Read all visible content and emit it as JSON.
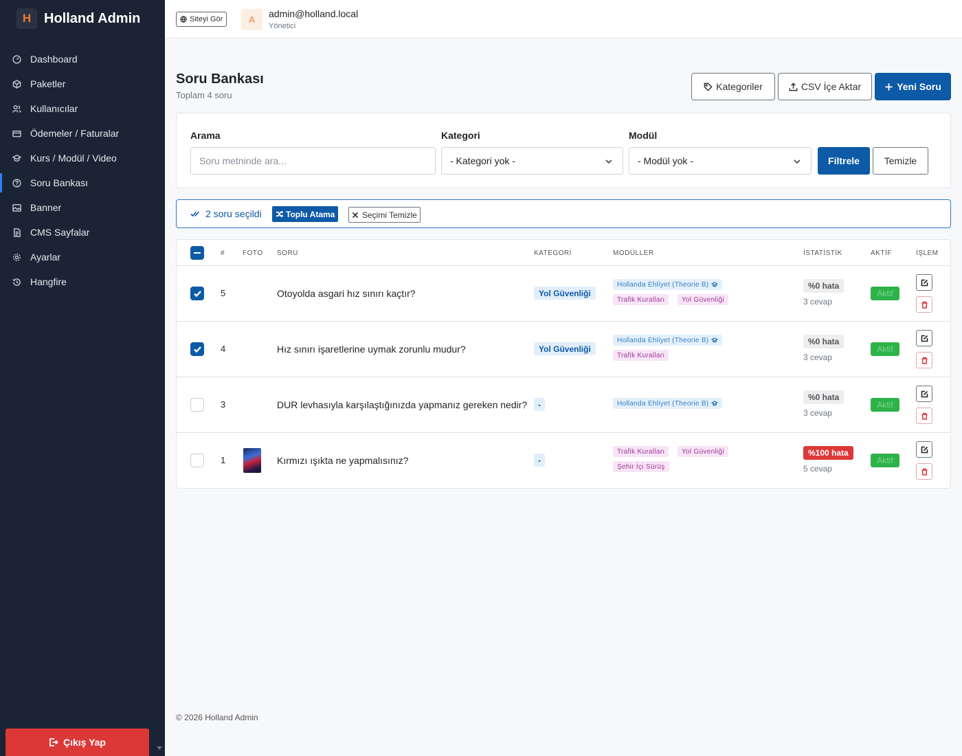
{
  "brand": {
    "logo_letter": "H",
    "name": "Holland Admin"
  },
  "sidebar": {
    "items": [
      {
        "label": "Dashboard",
        "icon": "dashboard-icon",
        "active": false
      },
      {
        "label": "Paketler",
        "icon": "box-icon",
        "active": false
      },
      {
        "label": "Kullanıcılar",
        "icon": "users-icon",
        "active": false
      },
      {
        "label": "Ödemeler / Faturalar",
        "icon": "card-icon",
        "active": false
      },
      {
        "label": "Kurs / Modül / Video",
        "icon": "graduation-cap-icon",
        "active": false
      },
      {
        "label": "Soru Bankası",
        "icon": "question-circle-icon",
        "active": true
      },
      {
        "label": "Banner",
        "icon": "image-icon",
        "active": false
      },
      {
        "label": "CMS Sayfalar",
        "icon": "document-icon",
        "active": false
      },
      {
        "label": "Ayarlar",
        "icon": "gear-icon",
        "active": false
      },
      {
        "label": "Hangfire",
        "icon": "history-icon",
        "active": false
      }
    ],
    "logout_label": "Çıkış Yap"
  },
  "topbar": {
    "site_button": "Siteyi Gör",
    "avatar_letter": "A",
    "user_email": "admin@holland.local",
    "user_role": "Yönetici"
  },
  "page": {
    "title": "Soru Bankası",
    "subtitle": "Toplam 4 soru",
    "buttons": {
      "categories": "Kategoriler",
      "csv_import": "CSV İçe Aktar",
      "new_question": "Yeni Soru"
    }
  },
  "filters": {
    "search_label": "Arama",
    "search_placeholder": "Soru metninde ara...",
    "search_value": "",
    "category_label": "Kategori",
    "category_value": "- Kategori yok -",
    "module_label": "Modül",
    "module_value": "- Modül yok -",
    "filter_button": "Filtrele",
    "clear_button": "Temizle"
  },
  "selection": {
    "count_text": "2 soru seçildi",
    "bulk_button": "Toplu Atama",
    "clear_button": "Seçimi Temizle"
  },
  "table": {
    "headers": {
      "num": "#",
      "photo": "FOTO",
      "question": "SORU",
      "category": "KATEGORİ",
      "modules": "MODÜLLER",
      "stats": "İSTATİSTİK",
      "active": "AKTİF",
      "actions": "İŞLEM"
    },
    "rows": [
      {
        "checked": true,
        "id": "5",
        "has_photo": false,
        "question": "Otoyolda asgari hız sınırı kaçtır?",
        "category": "Yol Güvenliği",
        "modules": [
          {
            "label": "Hollanda Ehliyet (Theorie B)",
            "color": "blue",
            "icon": true
          },
          {
            "label": "Trafik Kuralları",
            "color": "pink"
          },
          {
            "label": "Yol Güvenliği",
            "color": "pink"
          }
        ],
        "error_rate": "%0 hata",
        "error_color": "grey",
        "answers": "3 cevap",
        "active": "Aktif"
      },
      {
        "checked": true,
        "id": "4",
        "has_photo": false,
        "question": "Hız sınırı işaretlerine uymak zorunlu mudur?",
        "category": "Yol Güvenliği",
        "modules": [
          {
            "label": "Hollanda Ehliyet (Theorie B)",
            "color": "blue",
            "icon": true
          },
          {
            "label": "Trafik Kuralları",
            "color": "pink"
          }
        ],
        "error_rate": "%0 hata",
        "error_color": "grey",
        "answers": "3 cevap",
        "active": "Aktif"
      },
      {
        "checked": false,
        "id": "3",
        "has_photo": false,
        "question": "DUR levhasıyla karşılaştığınızda yapmanız gereken nedir?",
        "category": "-",
        "modules": [
          {
            "label": "Hollanda Ehliyet (Theorie B)",
            "color": "blue",
            "icon": true
          }
        ],
        "error_rate": "%0 hata",
        "error_color": "grey",
        "answers": "3 cevap",
        "active": "Aktif"
      },
      {
        "checked": false,
        "id": "1",
        "has_photo": true,
        "question": "Kırmızı ışıkta ne yapmalısınız?",
        "category": "-",
        "modules": [
          {
            "label": "Trafik Kuralları",
            "color": "pink"
          },
          {
            "label": "Yol Güvenliği",
            "color": "pink"
          },
          {
            "label": "Şehir İçi Sürüş",
            "color": "pink"
          }
        ],
        "error_rate": "%100 hata",
        "error_color": "red",
        "answers": "5 cevap",
        "active": "Aktif"
      }
    ]
  },
  "footer": "© 2026 Holland Admin"
}
